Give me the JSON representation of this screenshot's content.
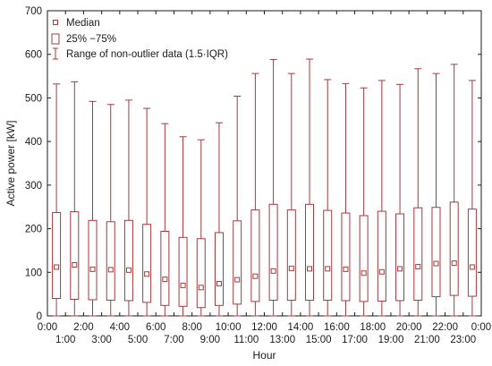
{
  "chart_data": {
    "type": "box",
    "title": "",
    "xlabel": "Hour",
    "ylabel": "Active power [kW]",
    "ylim": [
      0,
      700
    ],
    "yticks": [
      0,
      100,
      200,
      300,
      400,
      500,
      600,
      700
    ],
    "grid": false,
    "legend_position": "top-left",
    "colors": {
      "box": "#a8383b",
      "axis": "#1a1a1a"
    },
    "legend": {
      "median": "Median",
      "box": "25% −75%",
      "whisker": "Range of non-outlier data (1.5·IQR)"
    },
    "x_labels_top": [
      "0:00",
      "2:00",
      "4:00",
      "6:00",
      "8:00",
      "10:00",
      "12:00",
      "14:00",
      "16:00",
      "18:00",
      "20:00",
      "22:00",
      "0:00"
    ],
    "x_labels_bottom": [
      "1:00",
      "3:00",
      "5:00",
      "7:00",
      "9:00",
      "11:00",
      "13:00",
      "15:00",
      "17:00",
      "19:00",
      "21:00",
      "23:00"
    ],
    "categories": [
      "0:00",
      "1:00",
      "2:00",
      "3:00",
      "4:00",
      "5:00",
      "6:00",
      "7:00",
      "8:00",
      "9:00",
      "10:00",
      "11:00",
      "12:00",
      "13:00",
      "14:00",
      "15:00",
      "16:00",
      "17:00",
      "18:00",
      "19:00",
      "20:00",
      "21:00",
      "22:00",
      "23:00"
    ],
    "series": [
      {
        "hour": "0:00",
        "min": 0,
        "q1": 40,
        "median": 112,
        "q3": 237,
        "max": 532
      },
      {
        "hour": "1:00",
        "min": 0,
        "q1": 38,
        "median": 117,
        "q3": 239,
        "max": 537
      },
      {
        "hour": "2:00",
        "min": 0,
        "q1": 37,
        "median": 107,
        "q3": 219,
        "max": 492
      },
      {
        "hour": "3:00",
        "min": 0,
        "q1": 36,
        "median": 106,
        "q3": 216,
        "max": 485
      },
      {
        "hour": "4:00",
        "min": 0,
        "q1": 35,
        "median": 105,
        "q3": 219,
        "max": 495
      },
      {
        "hour": "5:00",
        "min": 0,
        "q1": 31,
        "median": 96,
        "q3": 210,
        "max": 476
      },
      {
        "hour": "6:00",
        "min": 0,
        "q1": 24,
        "median": 84,
        "q3": 194,
        "max": 441
      },
      {
        "hour": "7:00",
        "min": 0,
        "q1": 22,
        "median": 70,
        "q3": 180,
        "max": 411
      },
      {
        "hour": "8:00",
        "min": 0,
        "q1": 19,
        "median": 65,
        "q3": 177,
        "max": 404
      },
      {
        "hour": "9:00",
        "min": 0,
        "q1": 24,
        "median": 74,
        "q3": 191,
        "max": 443
      },
      {
        "hour": "10:00",
        "min": 0,
        "q1": 27,
        "median": 83,
        "q3": 218,
        "max": 504
      },
      {
        "hour": "11:00",
        "min": 0,
        "q1": 33,
        "median": 91,
        "q3": 243,
        "max": 556
      },
      {
        "hour": "12:00",
        "min": 0,
        "q1": 36,
        "median": 103,
        "q3": 256,
        "max": 588
      },
      {
        "hour": "13:00",
        "min": 0,
        "q1": 36,
        "median": 109,
        "q3": 243,
        "max": 556
      },
      {
        "hour": "14:00",
        "min": 0,
        "q1": 36,
        "median": 108,
        "q3": 256,
        "max": 589
      },
      {
        "hour": "15:00",
        "min": 0,
        "q1": 36,
        "median": 108,
        "q3": 242,
        "max": 542
      },
      {
        "hour": "16:00",
        "min": 0,
        "q1": 35,
        "median": 107,
        "q3": 236,
        "max": 533
      },
      {
        "hour": "17:00",
        "min": 0,
        "q1": 33,
        "median": 98,
        "q3": 230,
        "max": 523
      },
      {
        "hour": "18:00",
        "min": 0,
        "q1": 34,
        "median": 101,
        "q3": 240,
        "max": 540
      },
      {
        "hour": "19:00",
        "min": 0,
        "q1": 35,
        "median": 108,
        "q3": 234,
        "max": 531
      },
      {
        "hour": "20:00",
        "min": 0,
        "q1": 36,
        "median": 113,
        "q3": 248,
        "max": 567
      },
      {
        "hour": "21:00",
        "min": 0,
        "q1": 44,
        "median": 120,
        "q3": 249,
        "max": 556
      },
      {
        "hour": "22:00",
        "min": 0,
        "q1": 47,
        "median": 121,
        "q3": 261,
        "max": 577
      },
      {
        "hour": "23:00",
        "min": 0,
        "q1": 45,
        "median": 112,
        "q3": 245,
        "max": 540
      }
    ]
  }
}
